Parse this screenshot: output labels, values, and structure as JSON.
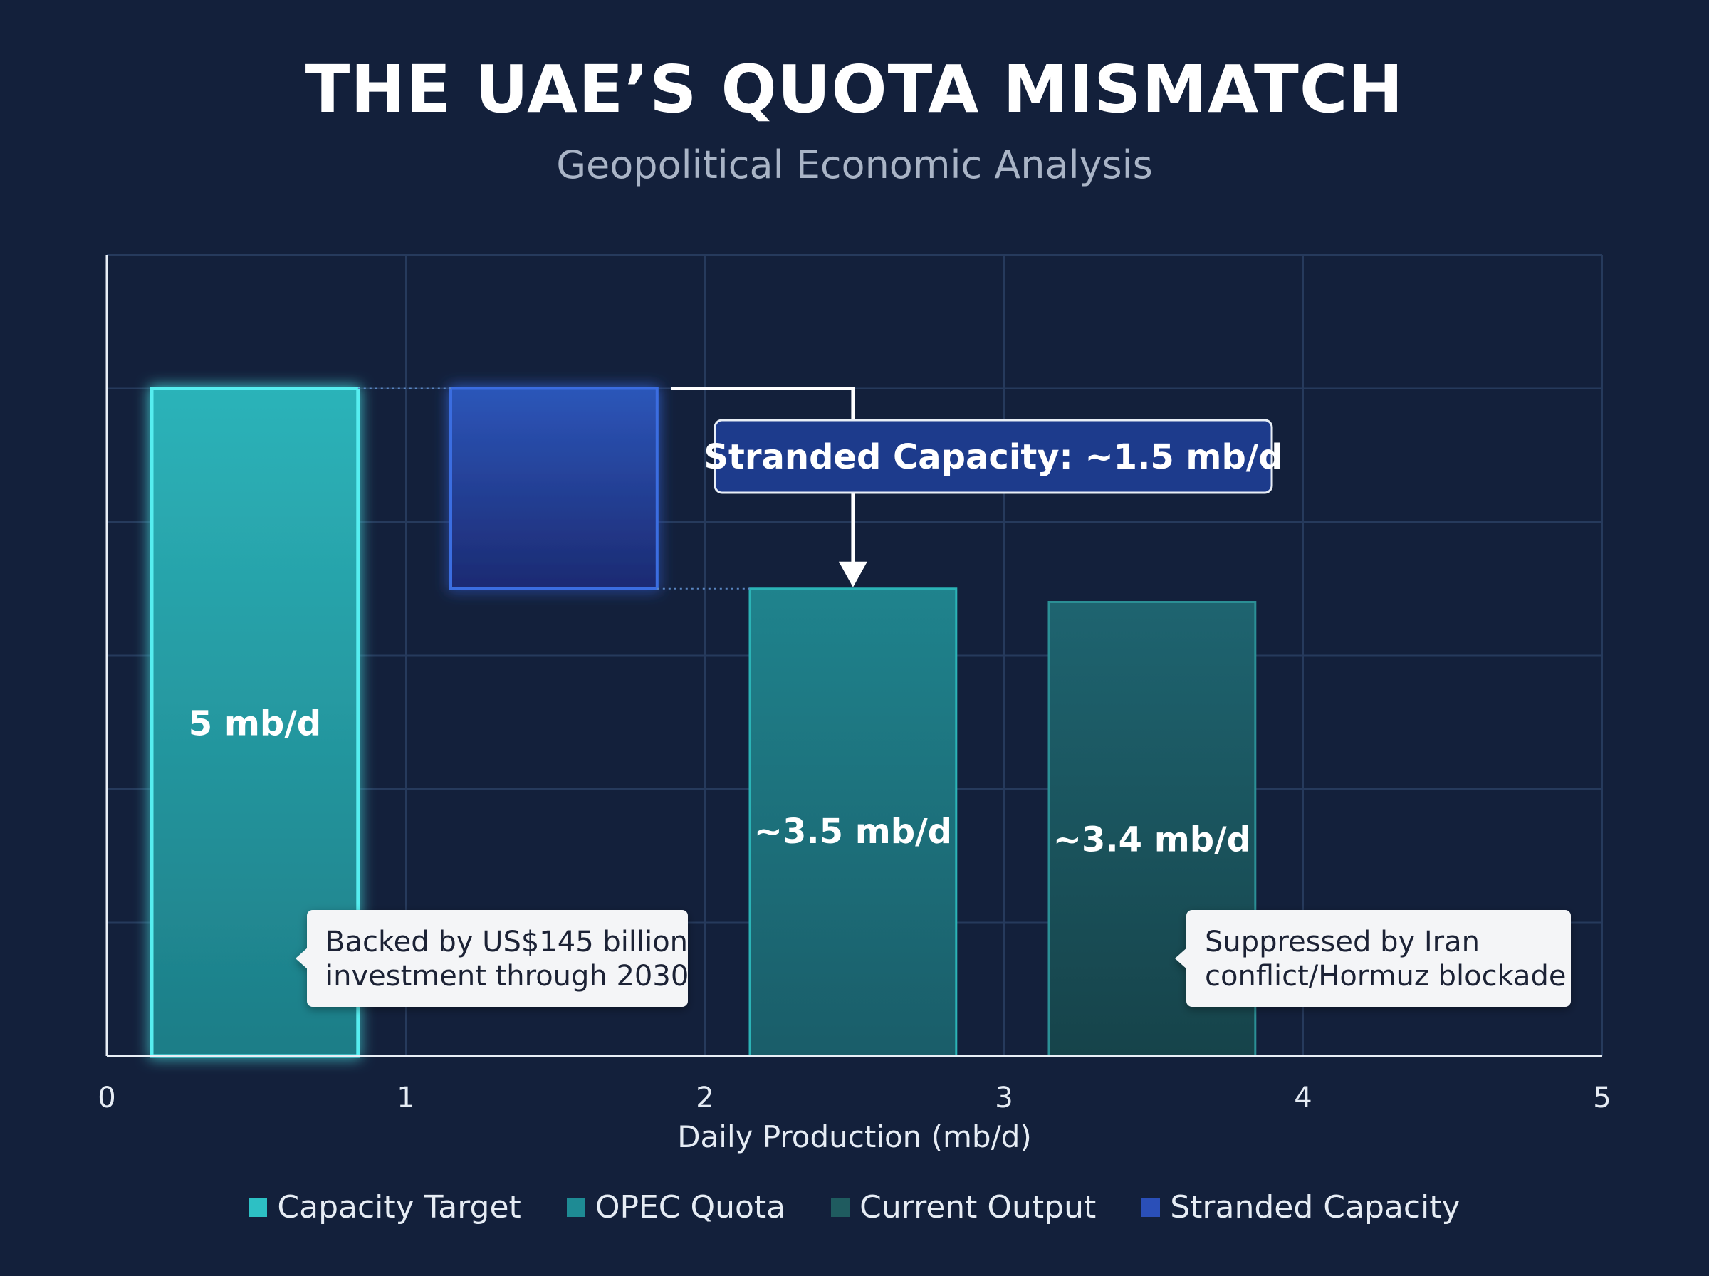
{
  "title": "THE UAE’S QUOTA MISMATCH",
  "subtitle": "Geopolitical Economic Analysis",
  "chart_data": {
    "type": "bar",
    "xlabel": "Daily Production (mb/d)",
    "x_ticks": [
      "0",
      "1",
      "2",
      "3",
      "4",
      "5"
    ],
    "xlim": [
      0,
      5
    ],
    "ylim": [
      0,
      6
    ],
    "grid": true,
    "legend_position": "bottom",
    "bars": [
      {
        "category": "Capacity Target",
        "value": 5,
        "label": "5 mb/d",
        "color": "#2fb3b8"
      },
      {
        "category": "Stranded Capacity",
        "value": 1.5,
        "base": 3.5,
        "label": "",
        "color": "#2a4fb0"
      },
      {
        "category": "OPEC Quota",
        "value": 3.5,
        "label": "~3.5 mb/d",
        "color": "#1e7f8a"
      },
      {
        "category": "Current Output",
        "value": 3.4,
        "label": "~3.4 mb/d",
        "color": "#1c5c66"
      }
    ],
    "annotations": [
      "Stranded Capacity: ~1.5 mb/d",
      [
        "Backed by US$145 billion",
        "investment through 2030"
      ],
      [
        "Suppressed by Iran",
        "conflict/Hormuz blockade"
      ]
    ],
    "legend": [
      {
        "label": "Capacity Target",
        "color": "#2dc0c4"
      },
      {
        "label": "OPEC Quota",
        "color": "#1e8b94"
      },
      {
        "label": "Current Output",
        "color": "#1f5b5f"
      },
      {
        "label": "Stranded Capacity",
        "color": "#2a4fb8"
      }
    ]
  }
}
